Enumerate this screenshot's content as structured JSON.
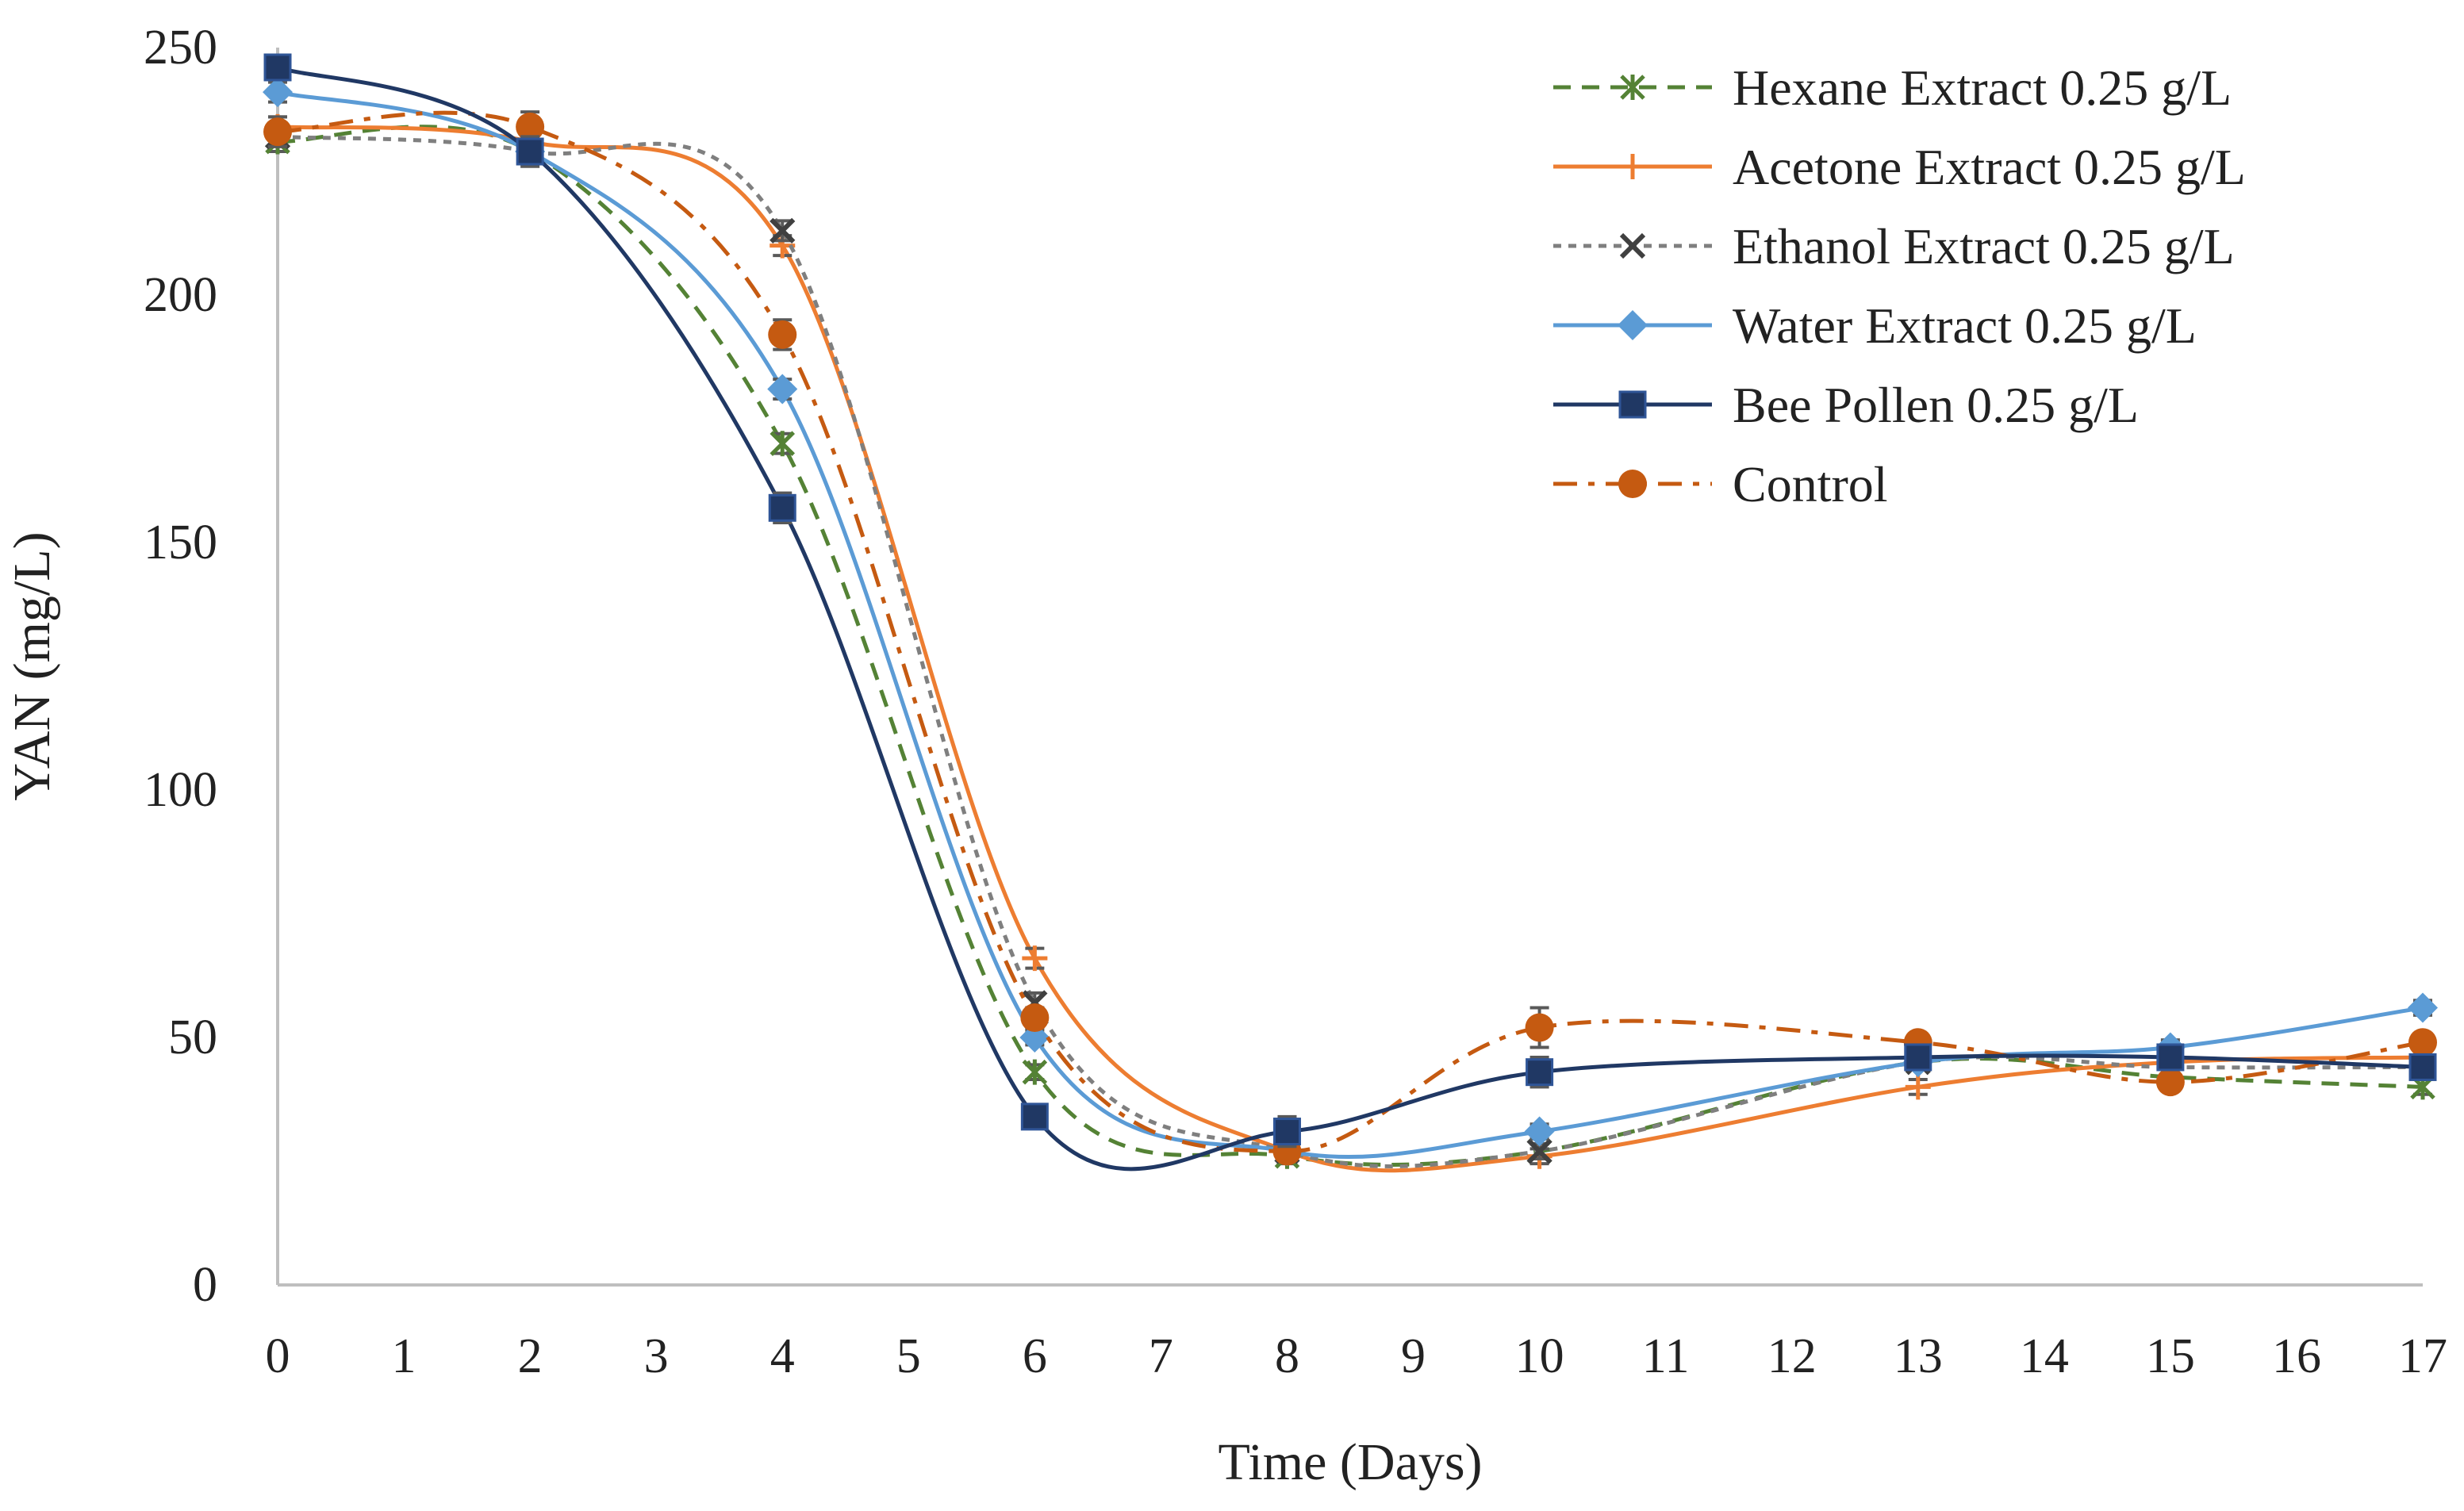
{
  "chart_data": {
    "type": "line",
    "title": "",
    "xlabel": "Time (Days)",
    "ylabel": "YAN (mg/L)",
    "xlim": [
      0,
      17
    ],
    "ylim": [
      0,
      250
    ],
    "x_ticks": [
      "0",
      "1",
      "2",
      "3",
      "4",
      "5",
      "6",
      "7",
      "8",
      "9",
      "10",
      "11",
      "12",
      "13",
      "14",
      "15",
      "16",
      "17"
    ],
    "x_tick_values": [
      0,
      1,
      2,
      3,
      4,
      5,
      6,
      7,
      8,
      9,
      10,
      11,
      12,
      13,
      14,
      15,
      16,
      17
    ],
    "y_ticks": [
      "0",
      "50",
      "100",
      "150",
      "200",
      "250"
    ],
    "y_tick_values": [
      0,
      50,
      100,
      150,
      200,
      250
    ],
    "legend_position": "top-right",
    "series": [
      {
        "name": "Hexane Extract 0.25 g/L",
        "color": "#548235",
        "dash": "dashed",
        "marker": "asterisk",
        "x": [
          0,
          2,
          4,
          6,
          8,
          10,
          13,
          15,
          17
        ],
        "y": [
          231,
          229,
          170,
          43,
          26,
          27,
          45,
          42,
          40
        ],
        "err": [
          2,
          2,
          2,
          1.5,
          1.5,
          1.5,
          1.5,
          1.5,
          1.5
        ]
      },
      {
        "name": "Acetone Extract 0.25 g/L",
        "color": "#ED7D31",
        "dash": "solid",
        "marker": "plus",
        "x": [
          0,
          2,
          4,
          6,
          8,
          10,
          13,
          15,
          17
        ],
        "y": [
          234,
          231,
          210,
          66,
          27,
          26,
          40,
          45,
          46
        ],
        "err": [
          2,
          2,
          2,
          2,
          1.5,
          1.5,
          1.5,
          1.5,
          1.5
        ]
      },
      {
        "name": "Ethanol Extract 0.25 g/L",
        "color": "#7F7F7F",
        "dash": "dotted",
        "marker": "cross",
        "x": [
          0,
          2,
          4,
          6,
          8,
          10,
          13,
          15,
          17
        ],
        "y": [
          232,
          229,
          213,
          57,
          27,
          27,
          45,
          44,
          44
        ],
        "err": [
          2,
          2,
          2,
          2,
          1.5,
          1.5,
          1.5,
          1.5,
          1.5
        ]
      },
      {
        "name": "Water Extract 0.25 g/L",
        "color": "#5B9BD5",
        "dash": "solid",
        "marker": "diamond",
        "x": [
          0,
          2,
          4,
          6,
          8,
          10,
          13,
          15,
          17
        ],
        "y": [
          241,
          229,
          181,
          50,
          27,
          31,
          45,
          48,
          56
        ],
        "err": [
          2,
          2,
          2,
          1.5,
          1.5,
          1.5,
          1.5,
          1.5,
          1.5
        ]
      },
      {
        "name": "Bee Pollen 0.25 g/L",
        "color": "#203864",
        "dash": "solid",
        "marker": "square",
        "x": [
          0,
          2,
          4,
          6,
          8,
          10,
          13,
          15,
          17
        ],
        "y": [
          246,
          229,
          157,
          34,
          31,
          43,
          46,
          46,
          44
        ],
        "err": [
          2,
          3,
          3,
          2,
          3,
          3,
          1.5,
          1.5,
          1.5
        ]
      },
      {
        "name": "Control",
        "color": "#C55A11",
        "dash": "dashdot",
        "marker": "circle",
        "x": [
          0,
          2,
          4,
          6,
          8,
          10,
          13,
          15,
          17
        ],
        "y": [
          233,
          234,
          192,
          54,
          27,
          52,
          49,
          41,
          49
        ],
        "err": [
          3,
          3,
          3,
          2,
          1.5,
          4,
          1.5,
          1.5,
          1.5
        ]
      }
    ]
  }
}
